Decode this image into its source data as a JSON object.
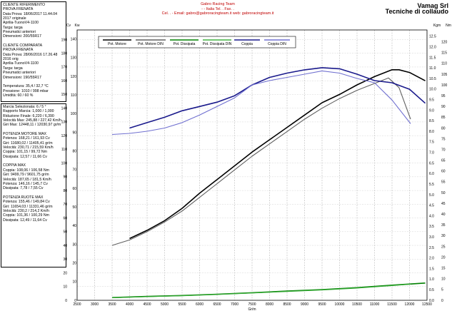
{
  "header": {
    "line1": "Gabro Racing Team",
    "line2": "- - Italia Tel. . Fax. .",
    "line3": "Cel. . - Email: gabro@gabroracingteam.it web: gabroracingteam.it",
    "brand1": "Vamag Srl",
    "brand2": "Tecniche di collaudo"
  },
  "reference_panel": {
    "lines": [
      "CLIENTE RIFERIMENTO",
      "PROVA FRENATA",
      "Data Prova: 18/06/2017 11.44.04",
      "2017 originale",
      "Aprilia-TuonoV4-1100",
      "Targa: targa",
      "Pneumatici anteriori",
      "Dimensioni: 200/55R17",
      "",
      "CLIENTE COMPARATA",
      "PROVA FRENATA",
      "Data Prova: 28/06/2016 17.26.48",
      "2016 orig",
      "Aprilia-TuonoV4-1100",
      "Targa: targa",
      "Pneumatici anteriori",
      "Dimensioni: 190/55R17",
      "",
      "Temperatura: 35,4 / 32,7 °C",
      "Pressione: 1010 / 998 mbar",
      "Umidità: 60 / 60 %"
    ]
  },
  "stats_panel": {
    "lines": [
      "Marcia Selezionata: 6 / 5 °",
      "Rapporto Marcia: 1,000 / 1,000",
      "Riduzione Finale: 6,220 / 6,390",
      "Velocità Max: 245,88 / 227,42 Km/h",
      "Giri Max: 12448,11 / 12030,97 gr/m",
      "",
      "POTENZA MOTORE MAX",
      "Potenza: 168,21 / 161,93 Cv",
      "Giri: 11680,02 / 11405,41 gr/m",
      "Velocità: 230,71 / 215,59 Km/h",
      "Coppia: 101,15 / 99,72 Nm",
      "Dissipata: 12,57 / 11,66 Cv",
      "",
      "COPPIA MAX",
      "Coppia: 108,06 / 106,58 Nm",
      "Giri: 9499,79 / 9601,75 gr/m",
      "Velocità: 187,65 / 181,5 Km/h",
      "Potenza: 146,16 / 145,7 Cv",
      "Dissipata: 7,78 / 7,55 Cv",
      "",
      "POTENZA RUOTE MAX",
      "Potenza: 155,46 / 149,84 Cv",
      "Giri: 11654,03 / 11331,46 gr/m",
      "Velocità: 230,2 / 214,2 Km/h",
      "Coppia: 101,36 / 100,29 Nm",
      "Dissipata: 12,49 / 11,64 Cv"
    ]
  },
  "chart_data": {
    "type": "line",
    "xlabel": "Gr/m",
    "xlim": [
      2500,
      12500
    ],
    "x_ticks": [
      2500,
      3000,
      3500,
      4000,
      4500,
      5000,
      5500,
      6000,
      6500,
      7000,
      7500,
      8000,
      8500,
      9000,
      9500,
      10000,
      10500,
      11000,
      11500,
      12000,
      12500
    ],
    "y_left_label": "Cv",
    "y_left_ticks": [
      0,
      10,
      20,
      30,
      40,
      50,
      60,
      70,
      80,
      90,
      100,
      110,
      120,
      130,
      140,
      150,
      160,
      170,
      180,
      190
    ],
    "y_left2_label": "Kw",
    "y_left2_ticks": [
      0,
      10,
      20,
      30,
      40,
      50,
      60,
      70,
      80,
      90,
      100,
      110,
      120,
      130,
      140
    ],
    "y_right_label": "Kgm",
    "y_right_ticks": [
      0.0,
      0.5,
      1.0,
      1.5,
      2.0,
      2.5,
      3.0,
      3.5,
      4.0,
      4.5,
      5.0,
      5.5,
      6.0,
      6.5,
      7.0,
      7.5,
      8.0,
      8.5,
      9.0,
      9.5,
      10.0,
      10.5,
      11.0,
      11.5,
      12.0,
      12.5
    ],
    "y_right2_label": "Nm",
    "y_right2_ticks": [
      0,
      5,
      10,
      15,
      20,
      25,
      30,
      35,
      40,
      45,
      50,
      55,
      60,
      65,
      70,
      75,
      80,
      85,
      90,
      95,
      100,
      105,
      110,
      115,
      120
    ],
    "ylim": [
      0,
      197
    ],
    "grid": true,
    "legend_position": "top",
    "series": [
      {
        "name": "Pot. Motore",
        "color": "#000000",
        "axis": "cv",
        "x": [
          4000,
          4500,
          5000,
          5500,
          6000,
          6500,
          7000,
          7500,
          8000,
          8500,
          9000,
          9500,
          10000,
          10500,
          11000,
          11500,
          11700,
          12000,
          12450
        ],
        "values": [
          45,
          51,
          58,
          67,
          78,
          88,
          98,
          108,
          117,
          126,
          135,
          144,
          150,
          157,
          163,
          168,
          168,
          166,
          160
        ]
      },
      {
        "name": "Pot. Motore DIN",
        "color": "#606060",
        "axis": "cv",
        "x": [
          3500,
          4000,
          4500,
          5000,
          5500,
          6000,
          6500,
          7000,
          7500,
          8000,
          8500,
          9000,
          9500,
          10000,
          10500,
          11000,
          11400,
          11700,
          12030
        ],
        "values": [
          40,
          44,
          50,
          57,
          65,
          75,
          85,
          95,
          105,
          114,
          123,
          132,
          140,
          147,
          153,
          158,
          162,
          155,
          132
        ]
      },
      {
        "name": "Pot. Dissipata",
        "color": "#008000",
        "axis": "cv",
        "x": [
          3500,
          4500,
          5500,
          6500,
          7500,
          8500,
          9500,
          10500,
          11500,
          12450
        ],
        "values": [
          2,
          2.8,
          3.5,
          4.4,
          5.5,
          6.7,
          7.8,
          9.2,
          11,
          12.6
        ]
      },
      {
        "name": "Pot. Dissipata DIN",
        "color": "#40b040",
        "axis": "cv",
        "x": [
          3500,
          4500,
          5500,
          6500,
          7500,
          8500,
          9500,
          10500,
          11500,
          12030
        ],
        "values": [
          1.8,
          2.6,
          3.3,
          4.2,
          5.3,
          6.4,
          7.5,
          8.9,
          10.7,
          11.7
        ]
      },
      {
        "name": "Coppia",
        "color": "#1a1a8c",
        "axis": "nm",
        "x": [
          4000,
          4500,
          5000,
          5500,
          6000,
          6500,
          7000,
          7500,
          8000,
          8500,
          9000,
          9500,
          10000,
          10500,
          11000,
          11500,
          12000,
          12450
        ],
        "values": [
          80,
          82.5,
          85,
          88,
          90,
          92,
          95,
          100,
          103.5,
          105.5,
          107,
          108,
          107.5,
          105,
          102,
          101,
          98,
          91.5
        ]
      },
      {
        "name": "Coppia DIN",
        "color": "#7070d0",
        "axis": "nm",
        "x": [
          3500,
          4000,
          4500,
          5000,
          5500,
          6000,
          6500,
          7000,
          7500,
          8000,
          8500,
          9000,
          9500,
          10000,
          10500,
          11000,
          11500,
          12030
        ],
        "values": [
          77,
          77.5,
          78.5,
          80,
          82.5,
          86,
          90,
          94,
          100,
          102,
          103.5,
          105,
          106.5,
          105.5,
          103,
          101,
          93,
          82
        ]
      }
    ]
  }
}
